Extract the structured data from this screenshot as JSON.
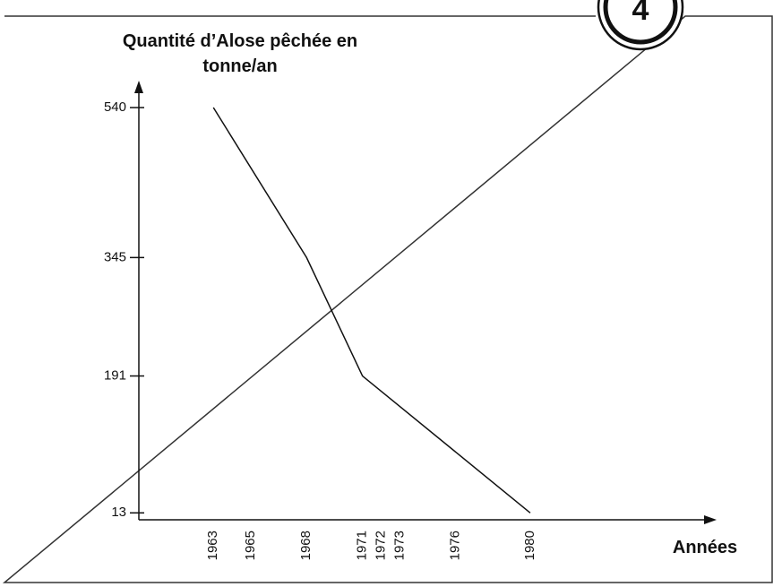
{
  "chart_data": {
    "type": "line",
    "badge": "4",
    "ylabel": [
      "Quantité d’Alose pêchée en",
      "tonne/an"
    ],
    "xlabel": "Années",
    "x": [
      1963,
      1968,
      1971,
      1980
    ],
    "values": [
      540,
      345,
      191,
      13
    ],
    "color": "#111111",
    "xlim": [
      1959,
      1990
    ],
    "xticks": [
      1963,
      1965,
      1968,
      1971,
      1972,
      1973,
      1976,
      1980
    ],
    "ylim": [
      4,
      575
    ],
    "yticks": [
      13,
      191,
      345,
      540
    ]
  }
}
